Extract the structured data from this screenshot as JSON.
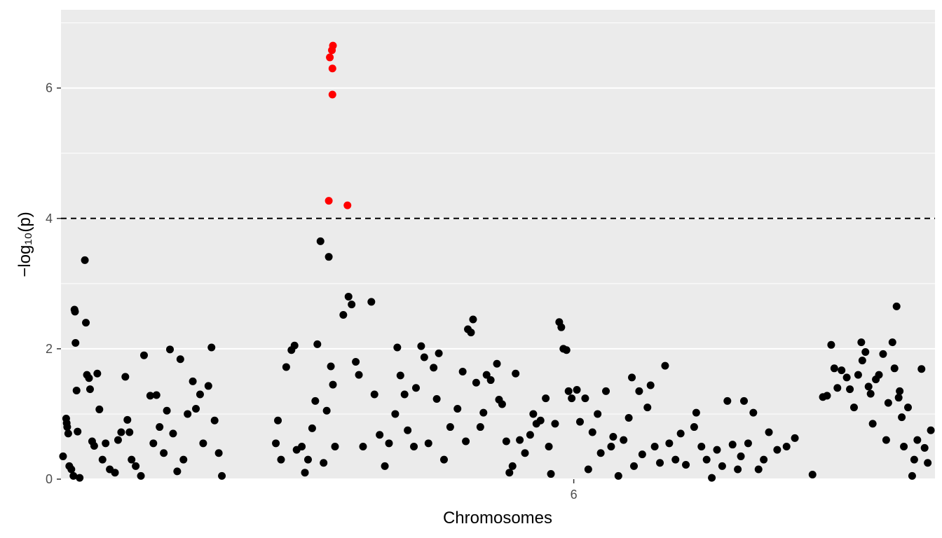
{
  "chart_data": {
    "type": "scatter",
    "xlabel": "Chromosomes",
    "ylabel": "−log₁₀(p)",
    "x_tick_labels": [
      "6"
    ],
    "ylim": [
      0,
      7.2
    ],
    "y_ticks": [
      0,
      2,
      4,
      6
    ],
    "grid": true,
    "threshold": 4,
    "colors": {
      "panel": "#ebebeb",
      "grid": "#ffffff",
      "point": "#000000",
      "highlight": "#ff0000"
    },
    "series": [
      {
        "color": "#000000",
        "points": [
          [
            0,
            0.35
          ],
          [
            0.3,
            0.93
          ],
          [
            0.35,
            0.86
          ],
          [
            0.4,
            0.8
          ],
          [
            0.5,
            0.7
          ],
          [
            0.6,
            0.2
          ],
          [
            0.8,
            0.15
          ],
          [
            1.0,
            0.05
          ],
          [
            1.1,
            2.6
          ],
          [
            1.15,
            2.57
          ],
          [
            1.2,
            2.09
          ],
          [
            1.3,
            1.36
          ],
          [
            1.4,
            0.73
          ],
          [
            1.6,
            0.02
          ],
          [
            2.1,
            3.36
          ],
          [
            2.2,
            2.4
          ],
          [
            2.3,
            1.6
          ],
          [
            2.5,
            1.55
          ],
          [
            2.6,
            1.38
          ],
          [
            2.8,
            0.58
          ],
          [
            3.0,
            0.51
          ],
          [
            3.3,
            1.62
          ],
          [
            3.5,
            1.07
          ],
          [
            3.8,
            0.3
          ],
          [
            4.1,
            0.55
          ],
          [
            4.5,
            0.15
          ],
          [
            5.0,
            0.1
          ],
          [
            5.3,
            0.6
          ],
          [
            5.6,
            0.72
          ],
          [
            6.0,
            1.57
          ],
          [
            6.2,
            0.91
          ],
          [
            6.4,
            0.72
          ],
          [
            6.6,
            0.3
          ],
          [
            7.0,
            0.2
          ],
          [
            7.5,
            0.05
          ],
          [
            7.8,
            1.9
          ],
          [
            8.4,
            1.28
          ],
          [
            8.7,
            0.55
          ],
          [
            9.0,
            1.29
          ],
          [
            9.3,
            0.8
          ],
          [
            9.7,
            0.4
          ],
          [
            10.0,
            1.05
          ],
          [
            10.3,
            1.99
          ],
          [
            10.6,
            0.7
          ],
          [
            11.0,
            0.12
          ],
          [
            11.3,
            1.84
          ],
          [
            11.6,
            0.3
          ],
          [
            12.0,
            1.0
          ],
          [
            12.5,
            1.5
          ],
          [
            12.8,
            1.08
          ],
          [
            13.2,
            1.3
          ],
          [
            13.5,
            0.55
          ],
          [
            14.0,
            1.43
          ],
          [
            14.3,
            2.02
          ],
          [
            14.6,
            0.9
          ],
          [
            15.0,
            0.4
          ],
          [
            15.3,
            0.05
          ],
          [
            20.5,
            0.55
          ],
          [
            20.7,
            0.9
          ],
          [
            21.0,
            0.3
          ],
          [
            21.5,
            1.72
          ],
          [
            22.0,
            1.98
          ],
          [
            22.3,
            2.05
          ],
          [
            22.5,
            0.45
          ],
          [
            23.0,
            0.5
          ],
          [
            23.3,
            0.1
          ],
          [
            23.6,
            0.3
          ],
          [
            24.0,
            0.78
          ],
          [
            24.3,
            1.2
          ],
          [
            24.5,
            2.07
          ],
          [
            24.8,
            3.65
          ],
          [
            25.1,
            0.25
          ],
          [
            25.4,
            1.05
          ],
          [
            25.6,
            3.41
          ],
          [
            25.8,
            1.73
          ],
          [
            26.0,
            1.45
          ],
          [
            26.2,
            0.5
          ],
          [
            27.0,
            2.52
          ],
          [
            27.5,
            2.8
          ],
          [
            27.8,
            2.68
          ],
          [
            28.2,
            1.8
          ],
          [
            28.5,
            1.6
          ],
          [
            28.9,
            0.5
          ],
          [
            29.7,
            2.72
          ],
          [
            30.0,
            1.3
          ],
          [
            30.5,
            0.68
          ],
          [
            31.0,
            0.2
          ],
          [
            31.4,
            0.55
          ],
          [
            32.0,
            1.0
          ],
          [
            32.2,
            2.02
          ],
          [
            32.5,
            1.59
          ],
          [
            32.9,
            1.3
          ],
          [
            33.2,
            0.75
          ],
          [
            33.8,
            0.5
          ],
          [
            34.0,
            1.4
          ],
          [
            34.5,
            2.04
          ],
          [
            34.8,
            1.87
          ],
          [
            35.2,
            0.55
          ],
          [
            35.7,
            1.71
          ],
          [
            36.0,
            1.23
          ],
          [
            36.2,
            1.93
          ],
          [
            36.7,
            0.3
          ],
          [
            37.3,
            0.8
          ],
          [
            38.0,
            1.08
          ],
          [
            38.5,
            1.65
          ],
          [
            38.8,
            0.58
          ],
          [
            39.0,
            2.3
          ],
          [
            39.3,
            2.25
          ],
          [
            39.5,
            2.45
          ],
          [
            39.8,
            1.48
          ],
          [
            40.2,
            0.8
          ],
          [
            40.5,
            1.02
          ],
          [
            40.8,
            1.6
          ],
          [
            41.2,
            1.52
          ],
          [
            41.8,
            1.77
          ],
          [
            42.0,
            1.22
          ],
          [
            42.3,
            1.15
          ],
          [
            42.7,
            0.58
          ],
          [
            43.0,
            0.1
          ],
          [
            43.3,
            0.2
          ],
          [
            43.6,
            1.62
          ],
          [
            44.0,
            0.6
          ],
          [
            44.5,
            0.4
          ],
          [
            45.0,
            0.68
          ],
          [
            45.3,
            1.0
          ],
          [
            45.6,
            0.85
          ],
          [
            46.0,
            0.9
          ],
          [
            46.5,
            1.24
          ],
          [
            46.8,
            0.5
          ],
          [
            47.0,
            0.08
          ],
          [
            47.4,
            0.85
          ],
          [
            47.8,
            2.41
          ],
          [
            48.0,
            2.33
          ],
          [
            48.2,
            2.0
          ],
          [
            48.5,
            1.98
          ],
          [
            48.7,
            1.35
          ],
          [
            49.0,
            1.24
          ],
          [
            49.5,
            1.37
          ],
          [
            49.8,
            0.88
          ],
          [
            50.3,
            1.24
          ],
          [
            50.6,
            0.15
          ],
          [
            51.0,
            0.72
          ],
          [
            51.5,
            1.0
          ],
          [
            51.8,
            0.4
          ],
          [
            52.3,
            1.35
          ],
          [
            52.8,
            0.5
          ],
          [
            53.0,
            0.65
          ],
          [
            53.5,
            0.05
          ],
          [
            54.0,
            0.6
          ],
          [
            54.5,
            0.94
          ],
          [
            54.8,
            1.56
          ],
          [
            55.0,
            0.2
          ],
          [
            55.5,
            1.35
          ],
          [
            55.8,
            0.38
          ],
          [
            56.3,
            1.1
          ],
          [
            56.6,
            1.44
          ],
          [
            57.0,
            0.5
          ],
          [
            57.5,
            0.25
          ],
          [
            58.0,
            1.74
          ],
          [
            58.4,
            0.55
          ],
          [
            59.0,
            0.3
          ],
          [
            59.5,
            0.7
          ],
          [
            60.0,
            0.22
          ],
          [
            60.8,
            0.8
          ],
          [
            61.0,
            1.02
          ],
          [
            61.5,
            0.5
          ],
          [
            62.0,
            0.3
          ],
          [
            62.5,
            0.02
          ],
          [
            63.0,
            0.45
          ],
          [
            63.5,
            0.2
          ],
          [
            64.0,
            1.2
          ],
          [
            64.5,
            0.53
          ],
          [
            65.0,
            0.15
          ],
          [
            65.3,
            0.35
          ],
          [
            65.6,
            1.2
          ],
          [
            66.0,
            0.55
          ],
          [
            66.5,
            1.02
          ],
          [
            67.0,
            0.15
          ],
          [
            67.5,
            0.3
          ],
          [
            68.0,
            0.72
          ],
          [
            68.8,
            0.45
          ],
          [
            69.7,
            0.5
          ],
          [
            70.5,
            0.63
          ],
          [
            72.2,
            0.07
          ],
          [
            73.2,
            1.26
          ],
          [
            73.6,
            1.28
          ],
          [
            74.0,
            2.06
          ],
          [
            74.3,
            1.7
          ],
          [
            74.6,
            1.4
          ],
          [
            75.0,
            1.67
          ],
          [
            75.5,
            1.56
          ],
          [
            75.8,
            1.38
          ],
          [
            76.2,
            1.1
          ],
          [
            76.6,
            1.6
          ],
          [
            76.9,
            2.1
          ],
          [
            77.0,
            1.82
          ],
          [
            77.3,
            1.95
          ],
          [
            77.6,
            1.42
          ],
          [
            77.8,
            1.31
          ],
          [
            78.0,
            0.85
          ],
          [
            78.3,
            1.53
          ],
          [
            78.6,
            1.6
          ],
          [
            79.0,
            1.92
          ],
          [
            79.3,
            0.6
          ],
          [
            79.5,
            1.17
          ],
          [
            79.9,
            2.1
          ],
          [
            80.1,
            1.7
          ],
          [
            80.3,
            2.65
          ],
          [
            80.5,
            1.25
          ],
          [
            80.6,
            1.35
          ],
          [
            80.8,
            0.95
          ],
          [
            81.0,
            0.5
          ],
          [
            81.4,
            1.1
          ],
          [
            81.8,
            0.05
          ],
          [
            82.0,
            0.3
          ],
          [
            82.3,
            0.6
          ],
          [
            82.7,
            1.69
          ],
          [
            83.0,
            0.48
          ],
          [
            83.3,
            0.25
          ],
          [
            83.6,
            0.75
          ]
        ]
      },
      {
        "color": "#ff0000",
        "points": [
          [
            25.7,
            6.47
          ],
          [
            25.9,
            6.58
          ],
          [
            26.0,
            6.65
          ],
          [
            25.95,
            6.3
          ],
          [
            25.95,
            5.9
          ],
          [
            25.6,
            4.27
          ],
          [
            27.4,
            4.2
          ]
        ]
      }
    ]
  }
}
